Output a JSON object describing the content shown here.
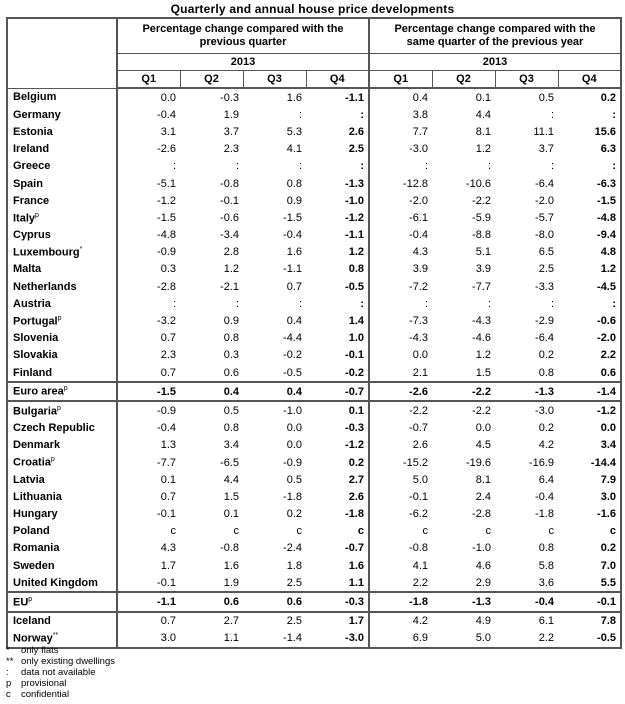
{
  "title": "Quarterly and annual house price developments",
  "header": {
    "group1": "Percentage change compared with the previous quarter",
    "group2": "Percentage change compared with the same quarter of the previous year",
    "year1": "2013",
    "year2": "2013",
    "quarters": [
      "Q1",
      "Q2",
      "Q3",
      "Q4",
      "Q1",
      "Q2",
      "Q3",
      "Q4"
    ]
  },
  "rows": [
    {
      "label": "Belgium",
      "sup": "",
      "values": [
        "0.0",
        "-0.3",
        "1.6",
        "-1.1",
        "0.4",
        "0.1",
        "0.5",
        "0.2"
      ]
    },
    {
      "label": "Germany",
      "sup": "",
      "values": [
        "-0.4",
        "1.9",
        ":",
        ":",
        "3.8",
        "4.4",
        ":",
        ":"
      ]
    },
    {
      "label": "Estonia",
      "sup": "",
      "values": [
        "3.1",
        "3.7",
        "5.3",
        "2.6",
        "7.7",
        "8.1",
        "11.1",
        "15.6"
      ]
    },
    {
      "label": "Ireland",
      "sup": "",
      "values": [
        "-2.6",
        "2.3",
        "4.1",
        "2.5",
        "-3.0",
        "1.2",
        "3.7",
        "6.3"
      ]
    },
    {
      "label": "Greece",
      "sup": "",
      "values": [
        ":",
        ":",
        ":",
        ":",
        ":",
        ":",
        ":",
        ":"
      ]
    },
    {
      "label": "Spain",
      "sup": "",
      "values": [
        "-5.1",
        "-0.8",
        "0.8",
        "-1.3",
        "-12.8",
        "-10.6",
        "-6.4",
        "-6.3"
      ]
    },
    {
      "label": "France",
      "sup": "",
      "values": [
        "-1.2",
        "-0.1",
        "0.9",
        "-1.0",
        "-2.0",
        "-2.2",
        "-2.0",
        "-1.5"
      ]
    },
    {
      "label": "Italy",
      "sup": "p",
      "values": [
        "-1.5",
        "-0.6",
        "-1.5",
        "-1.2",
        "-6.1",
        "-5.9",
        "-5.7",
        "-4.8"
      ]
    },
    {
      "label": "Cyprus",
      "sup": "",
      "values": [
        "-4.8",
        "-3.4",
        "-0.4",
        "-1.1",
        "-0.4",
        "-8.8",
        "-8.0",
        "-9.4"
      ]
    },
    {
      "label": "Luxembourg",
      "sup": "*",
      "values": [
        "-0.9",
        "2.8",
        "1.6",
        "1.2",
        "4.3",
        "5.1",
        "6.5",
        "4.8"
      ]
    },
    {
      "label": "Malta",
      "sup": "",
      "values": [
        "0.3",
        "1.2",
        "-1.1",
        "0.8",
        "3.9",
        "3.9",
        "2.5",
        "1.2"
      ]
    },
    {
      "label": "Netherlands",
      "sup": "",
      "values": [
        "-2.8",
        "-2.1",
        "0.7",
        "-0.5",
        "-7.2",
        "-7.7",
        "-3.3",
        "-4.5"
      ]
    },
    {
      "label": "Austria",
      "sup": "",
      "values": [
        ":",
        ":",
        ":",
        ":",
        ":",
        ":",
        ":",
        ":"
      ]
    },
    {
      "label": "Portugal",
      "sup": "p",
      "values": [
        "-3.2",
        "0.9",
        "0.4",
        "1.4",
        "-7.3",
        "-4.3",
        "-2.9",
        "-0.6"
      ]
    },
    {
      "label": "Slovenia",
      "sup": "",
      "values": [
        "0.7",
        "0.8",
        "-4.4",
        "1.0",
        "-4.3",
        "-4.6",
        "-6.4",
        "-2.0"
      ]
    },
    {
      "label": "Slovakia",
      "sup": "",
      "values": [
        "2.3",
        "0.3",
        "-0.2",
        "-0.1",
        "0.0",
        "1.2",
        "0.2",
        "2.2"
      ]
    },
    {
      "label": "Finland",
      "sup": "",
      "values": [
        "0.7",
        "0.6",
        "-0.5",
        "-0.2",
        "2.1",
        "1.5",
        "0.8",
        "0.6"
      ]
    },
    {
      "label": "Euro area",
      "sup": "p",
      "agg": true,
      "values": [
        "-1.5",
        "0.4",
        "0.4",
        "-0.7",
        "-2.6",
        "-2.2",
        "-1.3",
        "-1.4"
      ]
    },
    {
      "label": "Bulgaria",
      "sup": "p",
      "values": [
        "-0.9",
        "0.5",
        "-1.0",
        "0.1",
        "-2.2",
        "-2.2",
        "-3.0",
        "-1.2"
      ]
    },
    {
      "label": "Czech Republic",
      "sup": "",
      "values": [
        "-0.4",
        "0.8",
        "0.0",
        "-0.3",
        "-0.7",
        "0.0",
        "0.2",
        "0.0"
      ]
    },
    {
      "label": "Denmark",
      "sup": "",
      "values": [
        "1.3",
        "3.4",
        "0.0",
        "-1.2",
        "2.6",
        "4.5",
        "4.2",
        "3.4"
      ]
    },
    {
      "label": "Croatia",
      "sup": "p",
      "values": [
        "-7.7",
        "-6.5",
        "-0.9",
        "0.2",
        "-15.2",
        "-19.6",
        "-16.9",
        "-14.4"
      ]
    },
    {
      "label": "Latvia",
      "sup": "",
      "values": [
        "0.1",
        "4.4",
        "0.5",
        "2.7",
        "5.0",
        "8.1",
        "6.4",
        "7.9"
      ]
    },
    {
      "label": "Lithuania",
      "sup": "",
      "values": [
        "0.7",
        "1.5",
        "-1.8",
        "2.6",
        "-0.1",
        "2.4",
        "-0.4",
        "3.0"
      ]
    },
    {
      "label": "Hungary",
      "sup": "",
      "values": [
        "-0.1",
        "0.1",
        "0.2",
        "-1.8",
        "-6.2",
        "-2.8",
        "-1.8",
        "-1.6"
      ]
    },
    {
      "label": "Poland",
      "sup": "",
      "values": [
        "c",
        "c",
        "c",
        "c",
        "c",
        "c",
        "c",
        "c"
      ]
    },
    {
      "label": "Romania",
      "sup": "",
      "values": [
        "4.3",
        "-0.8",
        "-2.4",
        "-0.7",
        "-0.8",
        "-1.0",
        "0.8",
        "0.2"
      ]
    },
    {
      "label": "Sweden",
      "sup": "",
      "values": [
        "1.7",
        "1.6",
        "1.8",
        "1.6",
        "4.1",
        "4.6",
        "5.8",
        "7.0"
      ]
    },
    {
      "label": "United Kingdom",
      "sup": "",
      "values": [
        "-0.1",
        "1.9",
        "2.5",
        "1.1",
        "2.2",
        "2.9",
        "3.6",
        "5.5"
      ]
    },
    {
      "label": "EU",
      "sup": "p",
      "agg": true,
      "values": [
        "-1.1",
        "0.6",
        "0.6",
        "-0.3",
        "-1.8",
        "-1.3",
        "-0.4",
        "-0.1"
      ]
    },
    {
      "label": "Iceland",
      "sup": "",
      "values": [
        "0.7",
        "2.7",
        "2.5",
        "1.7",
        "4.2",
        "4.9",
        "6.1",
        "7.8"
      ]
    },
    {
      "label": "Norway",
      "sup": "**",
      "end": true,
      "values": [
        "3.0",
        "1.1",
        "-1.4",
        "-3.0",
        "6.9",
        "5.0",
        "2.2",
        "-0.5"
      ]
    }
  ],
  "footnotes": [
    {
      "key": "*",
      "text": "only flats"
    },
    {
      "key": "**",
      "text": "only existing dwellings"
    },
    {
      "key": ":",
      "text": "data not available"
    },
    {
      "key": "p",
      "text": "provisional"
    },
    {
      "key": "c",
      "text": "confidential"
    }
  ]
}
